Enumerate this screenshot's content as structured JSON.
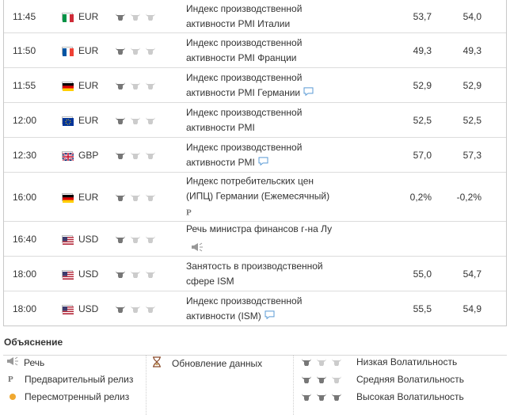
{
  "rows": [
    {
      "time": "11:45",
      "flag": "it",
      "currency": "EUR",
      "volatility": 1,
      "event_line1": "Индекс производственной",
      "event_line2": "активности PMI Италии",
      "actual": "53,7",
      "forecast": "54,0",
      "note": false,
      "speech": false,
      "preliminary": false
    },
    {
      "time": "11:50",
      "flag": "fr",
      "currency": "EUR",
      "volatility": 1,
      "event_line1": "Индекс производственной",
      "event_line2": "активности PMI Франции",
      "actual": "49,3",
      "forecast": "49,3",
      "note": false,
      "speech": false,
      "preliminary": false
    },
    {
      "time": "11:55",
      "flag": "de",
      "currency": "EUR",
      "volatility": 1,
      "event_line1": "Индекс производственной",
      "event_line2": "активности PMI Германии",
      "actual": "52,9",
      "forecast": "52,9",
      "note": true,
      "speech": false,
      "preliminary": false
    },
    {
      "time": "12:00",
      "flag": "eu",
      "currency": "EUR",
      "volatility": 1,
      "event_line1": "Индекс производственной",
      "event_line2": "активности PMI",
      "actual": "52,5",
      "forecast": "52,5",
      "note": false,
      "speech": false,
      "preliminary": false
    },
    {
      "time": "12:30",
      "flag": "gb",
      "currency": "GBP",
      "volatility": 1,
      "event_line1": "Индекс производственной",
      "event_line2": "активности PMI",
      "actual": "57,0",
      "forecast": "57,3",
      "note": true,
      "speech": false,
      "preliminary": false
    },
    {
      "time": "16:00",
      "flag": "de",
      "currency": "EUR",
      "volatility": 1,
      "event_line1": "Индекс потребительских цен",
      "event_line2": "(ИПЦ) Германии (Ежемесячный)",
      "actual": "0,2%",
      "forecast": "-0,2%",
      "note": false,
      "speech": false,
      "preliminary": true
    },
    {
      "time": "16:40",
      "flag": "us",
      "currency": "USD",
      "volatility": 1,
      "event_line1": "Речь министра финансов г-на Лу",
      "event_line2": "",
      "actual": "",
      "forecast": "",
      "note": false,
      "speech": true,
      "preliminary": false
    },
    {
      "time": "18:00",
      "flag": "us",
      "currency": "USD",
      "volatility": 1,
      "event_line1": "Занятость в производственной",
      "event_line2": "сфере ISM",
      "actual": "55,0",
      "forecast": "54,7",
      "note": false,
      "speech": false,
      "preliminary": false
    },
    {
      "time": "18:00",
      "flag": "us",
      "currency": "USD",
      "volatility": 1,
      "event_line1": "Индекс производственной",
      "event_line2": "активности (ISM)",
      "actual": "55,5",
      "forecast": "54,9",
      "note": true,
      "speech": false,
      "preliminary": false
    }
  ],
  "legend": {
    "title": "Объяснение",
    "speech": "Речь",
    "preliminary": "Предварительный релиз",
    "revised": "Пересмотренный релиз",
    "data_update": "Обновление данных",
    "low_vol": "Низкая Волатильность",
    "mid_vol": "Средняя Волатильность",
    "high_vol": "Высокая Волатильность",
    "preliminary_mark": "P"
  },
  "colors": {
    "bull_active": "#777777",
    "bull_inactive": "#cccccc",
    "revised_dot": "#f0a830",
    "note_icon": "#5b9bd5"
  }
}
